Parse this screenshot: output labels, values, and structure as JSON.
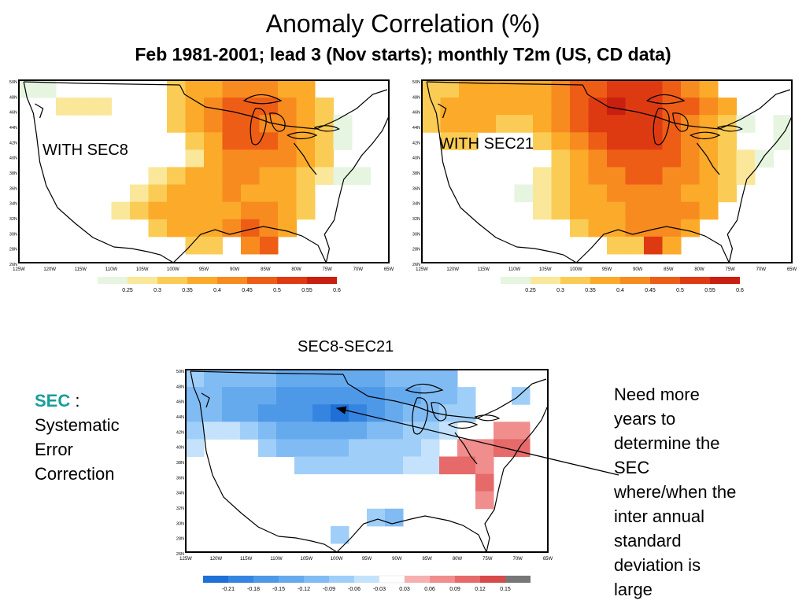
{
  "title": "Anomaly Correlation (%)",
  "subtitle": "Feb 1981-2001; lead 3 (Nov starts); monthly T2m (US, CD data)",
  "maps": [
    {
      "id": "left",
      "label": "WITH SEC8",
      "lon_ticks": [
        "125W",
        "120W",
        "115W",
        "110W",
        "105W",
        "100W",
        "95W",
        "90W",
        "85W",
        "80W",
        "75W",
        "70W",
        "65W"
      ],
      "lat_ticks": [
        "50N",
        "48N",
        "46N",
        "44N",
        "42N",
        "40N",
        "38N",
        "36N",
        "34N",
        "32N",
        "30N",
        "28N",
        "26N"
      ],
      "legend": [
        "0.25",
        "0.3",
        "0.35",
        "0.4",
        "0.45",
        "0.5",
        "0.55",
        "0.6"
      ],
      "colors": [
        "#e6f5e0",
        "#fae79a",
        "#fbcc55",
        "#fbaa2a",
        "#f78b20",
        "#ee5d16",
        "#de3a12",
        "#c81f10"
      ]
    },
    {
      "id": "right",
      "label": "WITH SEC21",
      "lon_ticks": [
        "125W",
        "120W",
        "115W",
        "110W",
        "105W",
        "100W",
        "95W",
        "90W",
        "85W",
        "80W",
        "75W",
        "70W",
        "65W"
      ],
      "lat_ticks": [
        "50N",
        "48N",
        "46N",
        "44N",
        "42N",
        "40N",
        "38N",
        "36N",
        "34N",
        "32N",
        "30N",
        "28N",
        "26N"
      ],
      "legend": [
        "0.25",
        "0.3",
        "0.35",
        "0.4",
        "0.45",
        "0.5",
        "0.55",
        "0.6"
      ],
      "colors": [
        "#e6f5e0",
        "#fae79a",
        "#fbcc55",
        "#fbaa2a",
        "#f78b20",
        "#ee5d16",
        "#de3a12",
        "#c81f10"
      ]
    },
    {
      "id": "diff",
      "label": "SEC8-SEC21",
      "lon_ticks": [
        "125W",
        "120W",
        "115W",
        "110W",
        "105W",
        "100W",
        "95W",
        "90W",
        "85W",
        "80W",
        "75W",
        "70W",
        "65W"
      ],
      "lat_ticks": [
        "50N",
        "48N",
        "46N",
        "44N",
        "42N",
        "40N",
        "38N",
        "36N",
        "34N",
        "32N",
        "30N",
        "28N",
        "26N"
      ],
      "legend": [
        "-0.21",
        "-0.18",
        "-0.15",
        "-0.12",
        "-0.09",
        "-0.06",
        "-0.03",
        "0.03",
        "0.06",
        "0.09",
        "0.12",
        "0.15"
      ],
      "colors": [
        "#1e6fd6",
        "#3585e0",
        "#4e98e8",
        "#66aaee",
        "#80bbf3",
        "#9fcff8",
        "#c4e2fc",
        "#ffffff",
        "#f7b0b0",
        "#f08d8d",
        "#e66a6a",
        "#d64a4a",
        "#777777"
      ]
    }
  ],
  "sec_note": {
    "key": "SEC",
    "sep": " :",
    "line2": "Systematic",
    "line3": "Error",
    "line4": "Correction"
  },
  "annotation": [
    "Need more",
    "years to",
    "determine the",
    "SEC",
    "where/when the",
    "inter annual",
    "standard",
    "deviation is",
    "large"
  ]
}
